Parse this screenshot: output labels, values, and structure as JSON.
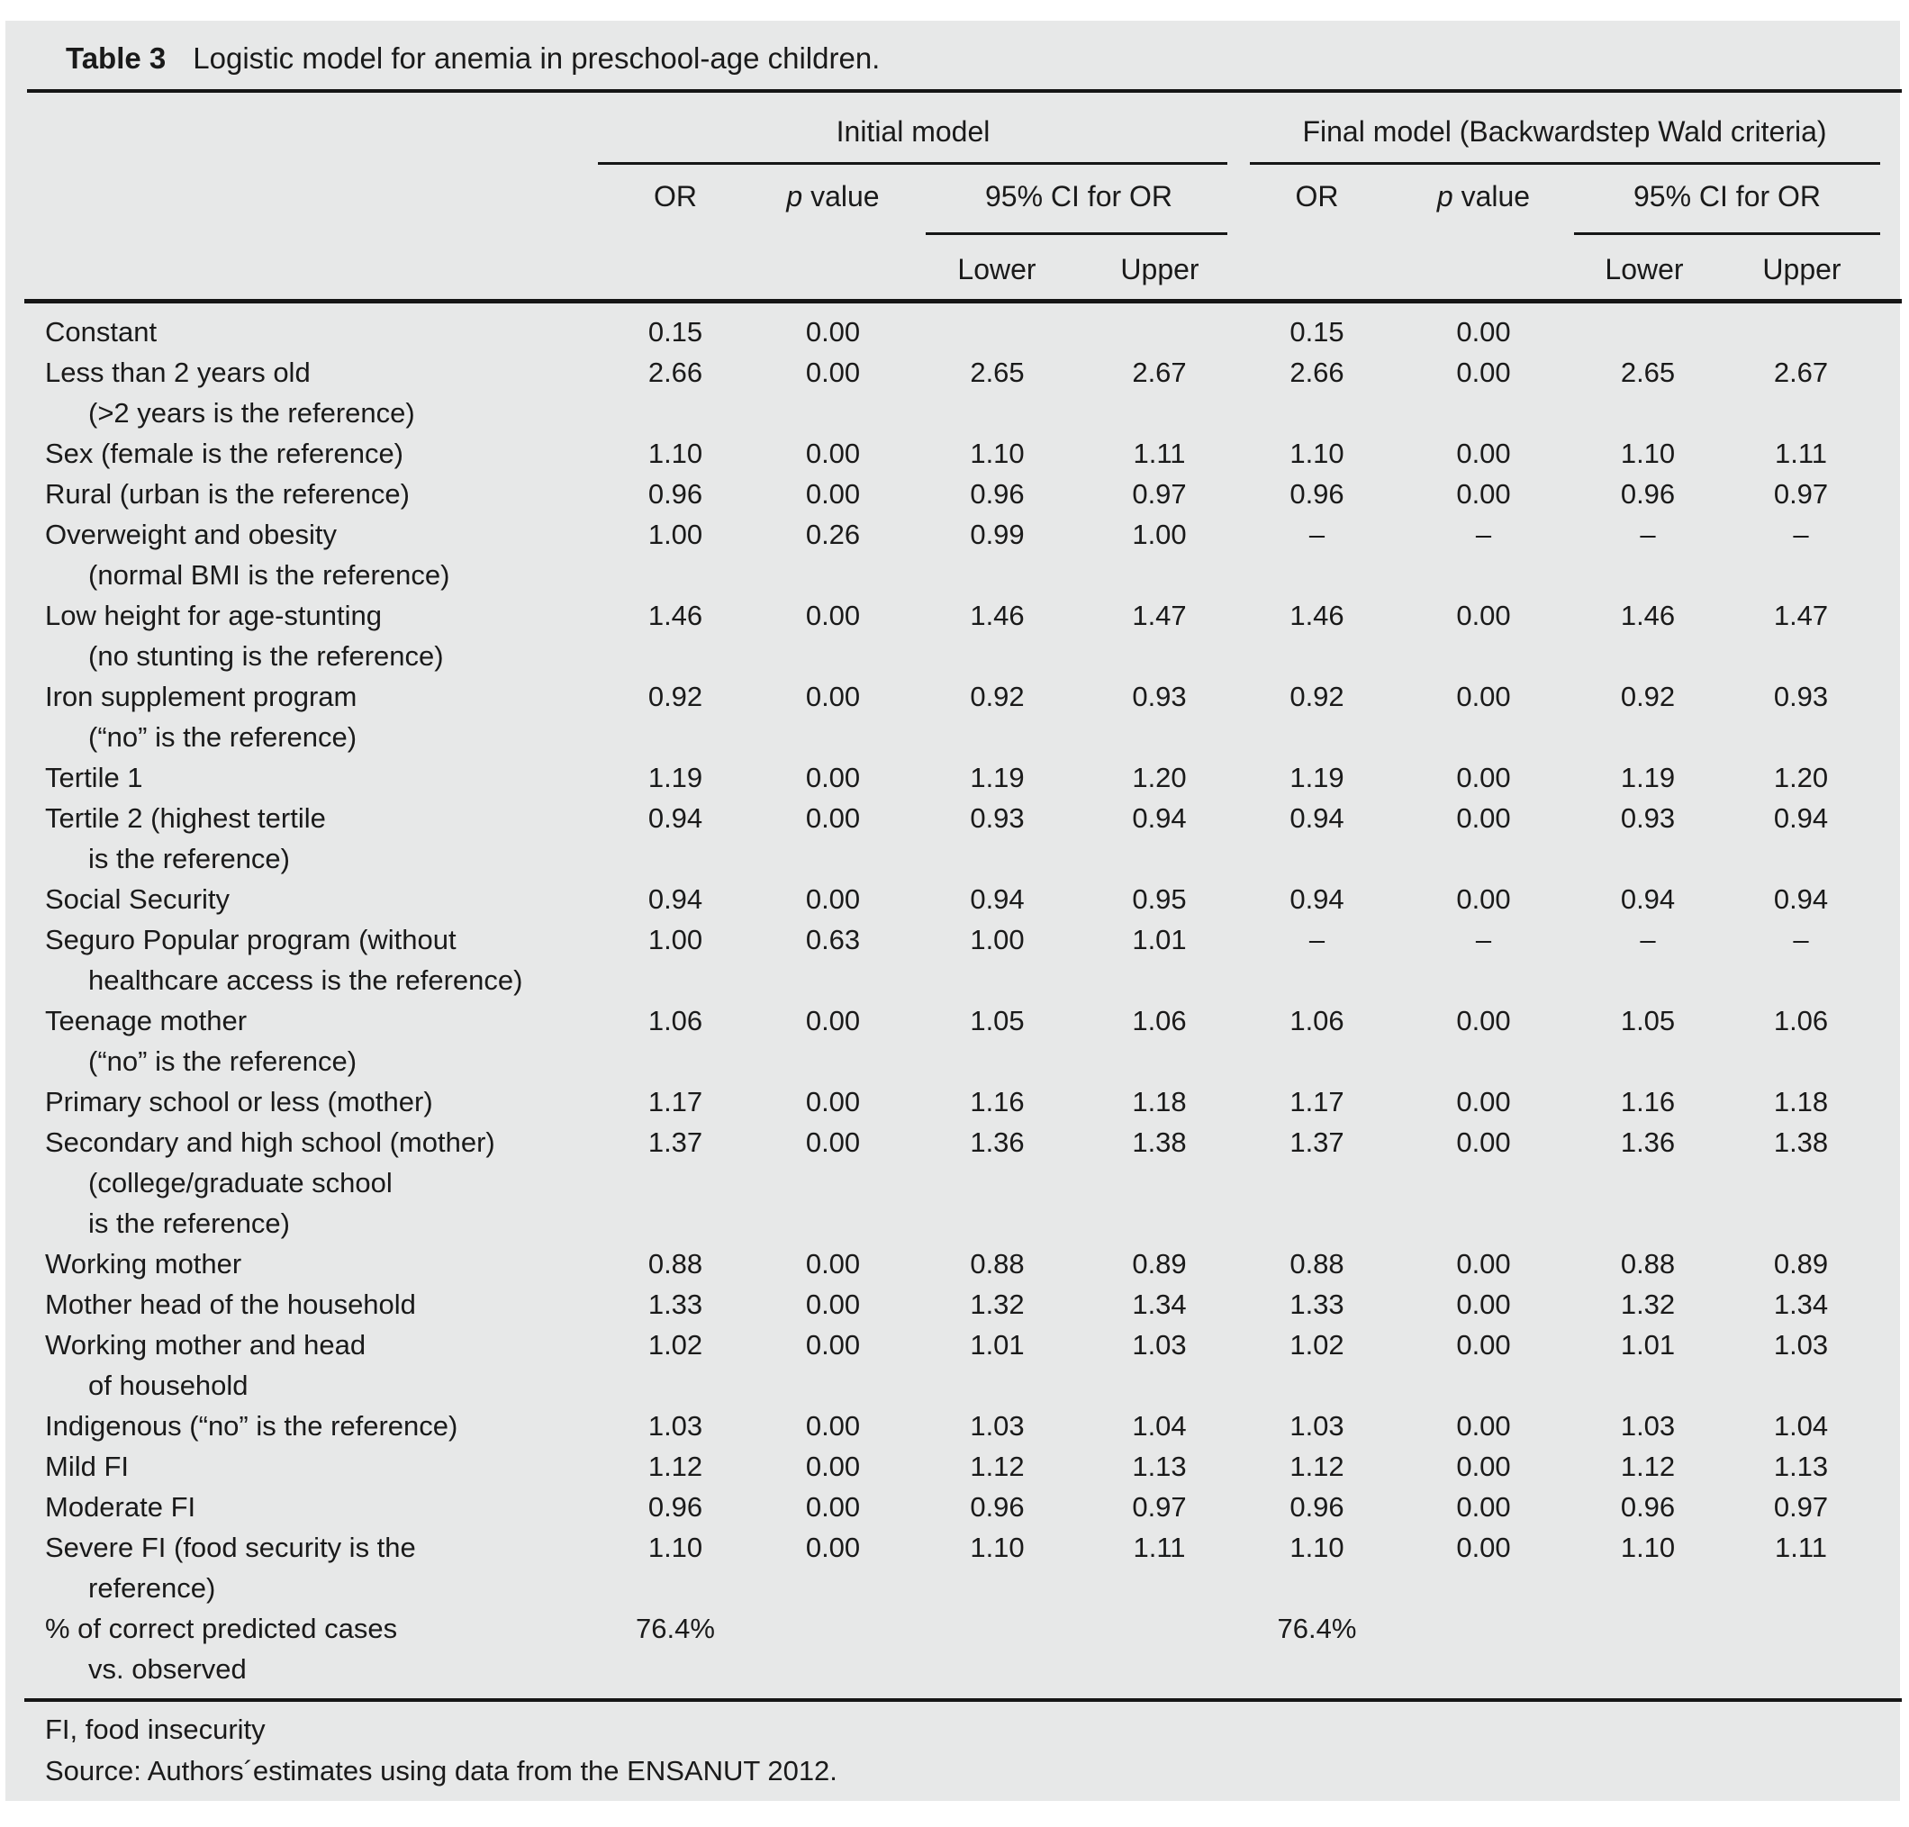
{
  "title": {
    "label": "Table 3",
    "text": "Logistic model for anemia in preschool-age children."
  },
  "header": {
    "groups": [
      {
        "label": "Initial model"
      },
      {
        "label": "Final model (Backwardstep Wald criteria)"
      }
    ],
    "columns": {
      "or": "OR",
      "p_prefix": "p",
      "p_suffix": " value",
      "ci": "95% CI for OR",
      "lower": "Lower",
      "upper": "Upper"
    }
  },
  "chart_data": {
    "type": "table",
    "title": "Table 3  Logistic model for anemia in preschool-age children.",
    "column_groups": [
      "Initial model",
      "Final model (Backwardstep Wald criteria)"
    ],
    "columns_per_group": [
      "OR",
      "p value",
      "95% CI for OR Lower",
      "95% CI for OR Upper"
    ]
  },
  "table": {
    "rows": [
      {
        "lines": [
          "Constant"
        ],
        "initial": [
          "0.15",
          "0.00",
          "",
          ""
        ],
        "final": [
          "0.15",
          "0.00",
          "",
          ""
        ]
      },
      {
        "lines": [
          "Less than 2 years old",
          "(>2 years is the reference)"
        ],
        "initial": [
          "2.66",
          "0.00",
          "2.65",
          "2.67"
        ],
        "final": [
          "2.66",
          "0.00",
          "2.65",
          "2.67"
        ]
      },
      {
        "lines": [
          "Sex (female is the reference)"
        ],
        "initial": [
          "1.10",
          "0.00",
          "1.10",
          "1.11"
        ],
        "final": [
          "1.10",
          "0.00",
          "1.10",
          "1.11"
        ]
      },
      {
        "lines": [
          "Rural (urban is the reference)"
        ],
        "initial": [
          "0.96",
          "0.00",
          "0.96",
          "0.97"
        ],
        "final": [
          "0.96",
          "0.00",
          "0.96",
          "0.97"
        ]
      },
      {
        "lines": [
          "Overweight and obesity",
          "(normal BMI is the reference)"
        ],
        "initial": [
          "1.00",
          "0.26",
          "0.99",
          "1.00"
        ],
        "final": [
          "–",
          "–",
          "–",
          "–"
        ]
      },
      {
        "lines": [
          "Low height for age-stunting",
          "(no stunting is the reference)"
        ],
        "initial": [
          "1.46",
          "0.00",
          "1.46",
          "1.47"
        ],
        "final": [
          "1.46",
          "0.00",
          "1.46",
          "1.47"
        ]
      },
      {
        "lines": [
          "Iron supplement program",
          "(“no” is the reference)"
        ],
        "initial": [
          "0.92",
          "0.00",
          "0.92",
          "0.93"
        ],
        "final": [
          "0.92",
          "0.00",
          "0.92",
          "0.93"
        ]
      },
      {
        "lines": [
          "Tertile 1"
        ],
        "initial": [
          "1.19",
          "0.00",
          "1.19",
          "1.20"
        ],
        "final": [
          "1.19",
          "0.00",
          "1.19",
          "1.20"
        ]
      },
      {
        "lines": [
          "Tertile 2 (highest tertile",
          "is the reference)"
        ],
        "initial": [
          "0.94",
          "0.00",
          "0.93",
          "0.94"
        ],
        "final": [
          "0.94",
          "0.00",
          "0.93",
          "0.94"
        ]
      },
      {
        "lines": [
          "Social Security"
        ],
        "initial": [
          "0.94",
          "0.00",
          "0.94",
          "0.95"
        ],
        "final": [
          "0.94",
          "0.00",
          "0.94",
          "0.94"
        ]
      },
      {
        "lines": [
          "Seguro Popular program (without",
          "healthcare access is the reference)"
        ],
        "initial": [
          "1.00",
          "0.63",
          "1.00",
          "1.01"
        ],
        "final": [
          "–",
          "–",
          "–",
          "–"
        ]
      },
      {
        "lines": [
          "Teenage mother",
          "(“no” is the reference)"
        ],
        "initial": [
          "1.06",
          "0.00",
          "1.05",
          "1.06"
        ],
        "final": [
          "1.06",
          "0.00",
          "1.05",
          "1.06"
        ]
      },
      {
        "lines": [
          "Primary school or less (mother)"
        ],
        "initial": [
          "1.17",
          "0.00",
          "1.16",
          "1.18"
        ],
        "final": [
          "1.17",
          "0.00",
          "1.16",
          "1.18"
        ]
      },
      {
        "lines": [
          "Secondary and high school (mother)",
          "(college/graduate school",
          "is the reference)"
        ],
        "initial": [
          "1.37",
          "0.00",
          "1.36",
          "1.38"
        ],
        "final": [
          "1.37",
          "0.00",
          "1.36",
          "1.38"
        ]
      },
      {
        "lines": [
          "Working mother"
        ],
        "initial": [
          "0.88",
          "0.00",
          "0.88",
          "0.89"
        ],
        "final": [
          "0.88",
          "0.00",
          "0.88",
          "0.89"
        ]
      },
      {
        "lines": [
          "Mother head of the household"
        ],
        "initial": [
          "1.33",
          "0.00",
          "1.32",
          "1.34"
        ],
        "final": [
          "1.33",
          "0.00",
          "1.32",
          "1.34"
        ]
      },
      {
        "lines": [
          "Working mother and head",
          "of household"
        ],
        "initial": [
          "1.02",
          "0.00",
          "1.01",
          "1.03"
        ],
        "final": [
          "1.02",
          "0.00",
          "1.01",
          "1.03"
        ]
      },
      {
        "lines": [
          "Indigenous (“no” is the reference)"
        ],
        "initial": [
          "1.03",
          "0.00",
          "1.03",
          "1.04"
        ],
        "final": [
          "1.03",
          "0.00",
          "1.03",
          "1.04"
        ]
      },
      {
        "lines": [
          "Mild FI"
        ],
        "initial": [
          "1.12",
          "0.00",
          "1.12",
          "1.13"
        ],
        "final": [
          "1.12",
          "0.00",
          "1.12",
          "1.13"
        ]
      },
      {
        "lines": [
          "Moderate FI"
        ],
        "initial": [
          "0.96",
          "0.00",
          "0.96",
          "0.97"
        ],
        "final": [
          "0.96",
          "0.00",
          "0.96",
          "0.97"
        ]
      },
      {
        "lines": [
          "Severe FI (food security is the",
          "reference)"
        ],
        "initial": [
          "1.10",
          "0.00",
          "1.10",
          "1.11"
        ],
        "final": [
          "1.10",
          "0.00",
          "1.10",
          "1.11"
        ]
      },
      {
        "lines": [
          "% of correct predicted cases",
          "vs. observed"
        ],
        "initial": [
          "76.4%",
          "",
          "",
          ""
        ],
        "final": [
          "76.4%",
          "",
          "",
          ""
        ]
      }
    ]
  },
  "footnotes": [
    "FI, food insecurity",
    "Source: Authors´estimates using data from the ENSANUT 2012."
  ],
  "colors": {
    "card_background": "#e7e8e8",
    "text": "#1a1a1a",
    "rule": "#161616"
  }
}
